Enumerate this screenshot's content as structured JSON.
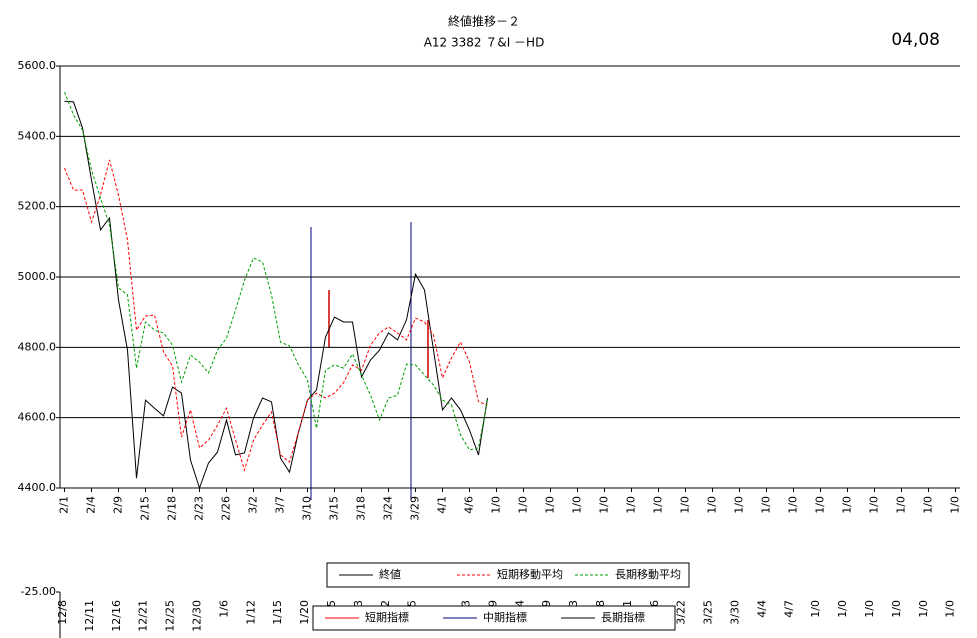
{
  "chart_data": [
    {
      "type": "line",
      "title": "終値推移－２",
      "subtitle": "A12 3382 ７&I －HD",
      "annotation": "04,08",
      "categories": [
        "2/1",
        null,
        null,
        "2/4",
        null,
        null,
        "2/9",
        null,
        null,
        "2/15",
        null,
        null,
        "2/18",
        null,
        null,
        "2/23",
        null,
        null,
        "2/26",
        null,
        null,
        "3/2",
        null,
        null,
        "3/7",
        null,
        null,
        "3/10",
        null,
        null,
        "3/15",
        null,
        null,
        "3/18",
        null,
        null,
        "3/24",
        null,
        null,
        "3/29",
        null,
        null,
        "4/1",
        null,
        null,
        "4/6",
        null,
        null,
        "1/0",
        null,
        null,
        "1/0",
        null,
        null,
        "1/0",
        null,
        null,
        "1/0",
        null,
        null,
        "1/0",
        null,
        null,
        "1/0",
        null,
        null,
        "1/0",
        null,
        null,
        "1/0",
        null,
        null,
        "1/0",
        null,
        null,
        "1/0",
        null,
        null,
        "1/0",
        null,
        null,
        "1/0",
        null,
        null,
        "1/0",
        null,
        null,
        "1/0",
        null,
        null,
        "1/0",
        null,
        null,
        "1/0",
        null,
        null,
        "1/0",
        null,
        null,
        "1/0"
      ],
      "series": [
        {
          "name": "終値",
          "color": "#000000",
          "dash": "none",
          "values": [
            5500,
            5498,
            5424,
            5276,
            5134,
            5168,
            4935,
            4792,
            4428,
            4650,
            4627,
            4605,
            4687,
            4670,
            4479,
            4400,
            4471,
            4502,
            4593,
            4494,
            4500,
            4599,
            4656,
            4645,
            4485,
            4445,
            4559,
            4650,
            4679,
            4829,
            4886,
            4872,
            4872,
            4716,
            4764,
            4792,
            4841,
            4821,
            4878,
            5008,
            4963,
            4792,
            4622,
            4656,
            4622,
            4565,
            4494,
            4656,
            null,
            null,
            null,
            null,
            null,
            null,
            null,
            null,
            null,
            null,
            null,
            null,
            null,
            null,
            null,
            null,
            null,
            null,
            null,
            null,
            null,
            null,
            null,
            null,
            null,
            null,
            null,
            null,
            null,
            null,
            null,
            null,
            null,
            null,
            null,
            null,
            null,
            null,
            null,
            null,
            null,
            null,
            null,
            null,
            null,
            null,
            null,
            null,
            null,
            null,
            null,
            null
          ]
        },
        {
          "name": "短期移動平均",
          "color": "#ff0000",
          "dash": "dashed",
          "values": [
            5310,
            5247,
            5247,
            5156,
            5233,
            5333,
            5233,
            5105,
            4849,
            4889,
            4892,
            4787,
            4747,
            4545,
            4622,
            4514,
            4536,
            4579,
            4627,
            4536,
            4451,
            4536,
            4579,
            4616,
            4494,
            4474,
            4559,
            4650,
            4670,
            4656,
            4670,
            4699,
            4750,
            4735,
            4806,
            4841,
            4858,
            4841,
            4821,
            4883,
            4872,
            4835,
            4713,
            4770,
            4815,
            4758,
            4645,
            4636,
            null,
            null,
            null,
            null,
            null,
            null,
            null,
            null,
            null,
            null,
            null,
            null,
            null,
            null,
            null,
            null,
            null,
            null,
            null,
            null,
            null,
            null,
            null,
            null,
            null,
            null,
            null,
            null,
            null,
            null,
            null,
            null,
            null,
            null,
            null,
            null,
            null,
            null,
            null,
            null,
            null,
            null,
            null,
            null,
            null,
            null,
            null,
            null,
            null,
            null,
            null,
            null
          ]
        },
        {
          "name": "長期移動平均",
          "color": "#00a000",
          "dash": "dashed",
          "values": [
            5526,
            5461,
            5418,
            5304,
            5225,
            5148,
            4969,
            4949,
            4741,
            4872,
            4849,
            4841,
            4806,
            4701,
            4778,
            4758,
            4727,
            4792,
            4826,
            4906,
            4991,
            5054,
            5043,
            4949,
            4815,
            4804,
            4750,
            4707,
            4570,
            4735,
            4750,
            4741,
            4781,
            4721,
            4664,
            4593,
            4656,
            4664,
            4752,
            4750,
            4721,
            4693,
            4650,
            4636,
            4551,
            4508,
            4514,
            4650,
            null,
            null,
            null,
            null,
            null,
            null,
            null,
            null,
            null,
            null,
            null,
            null,
            null,
            null,
            null,
            null,
            null,
            null,
            null,
            null,
            null,
            null,
            null,
            null,
            null,
            null,
            null,
            null,
            null,
            null,
            null,
            null,
            null,
            null,
            null,
            null,
            null,
            null,
            null,
            null,
            null,
            null,
            null,
            null,
            null,
            null,
            null,
            null,
            null,
            null,
            null,
            null
          ]
        }
      ],
      "ylim": [
        4400,
        5600
      ],
      "yticks": [
        {
          "value": 4400,
          "label": "4400.0"
        },
        {
          "value": 4600,
          "label": "4600.0"
        },
        {
          "value": 4800,
          "label": "4800.0"
        },
        {
          "value": 5000,
          "label": "5000.0"
        },
        {
          "value": 5200,
          "label": "5200.0"
        },
        {
          "value": 5400,
          "label": "5400.0"
        },
        {
          "value": 5600,
          "label": "5600.0"
        }
      ],
      "grid": true,
      "legend": "bottom"
    },
    {
      "type": "line",
      "categories": [
        "12/8",
        "12/11",
        "12/16",
        "12/21",
        "12/25",
        "12/30",
        "1/6",
        "1/12",
        "1/15",
        "1/20",
        "1/25",
        "3",
        "2",
        "5",
        null,
        "3",
        "9",
        "4",
        "9",
        "3",
        "8",
        "1",
        "3/16",
        "3/22",
        "3/25",
        "3/30",
        "4/4",
        "4/7",
        "1/0",
        "1/0",
        "1/0",
        "1/0",
        "1/0",
        "1/0"
      ],
      "series": [
        {
          "name": "短期指標",
          "color": "#ff0000"
        },
        {
          "name": "中期指標",
          "color": "#000080"
        },
        {
          "name": "長期指標",
          "color": "#000000"
        }
      ],
      "yticks": [
        {
          "value": -25,
          "label": "-25.00"
        }
      ],
      "legend": "bottom"
    }
  ]
}
